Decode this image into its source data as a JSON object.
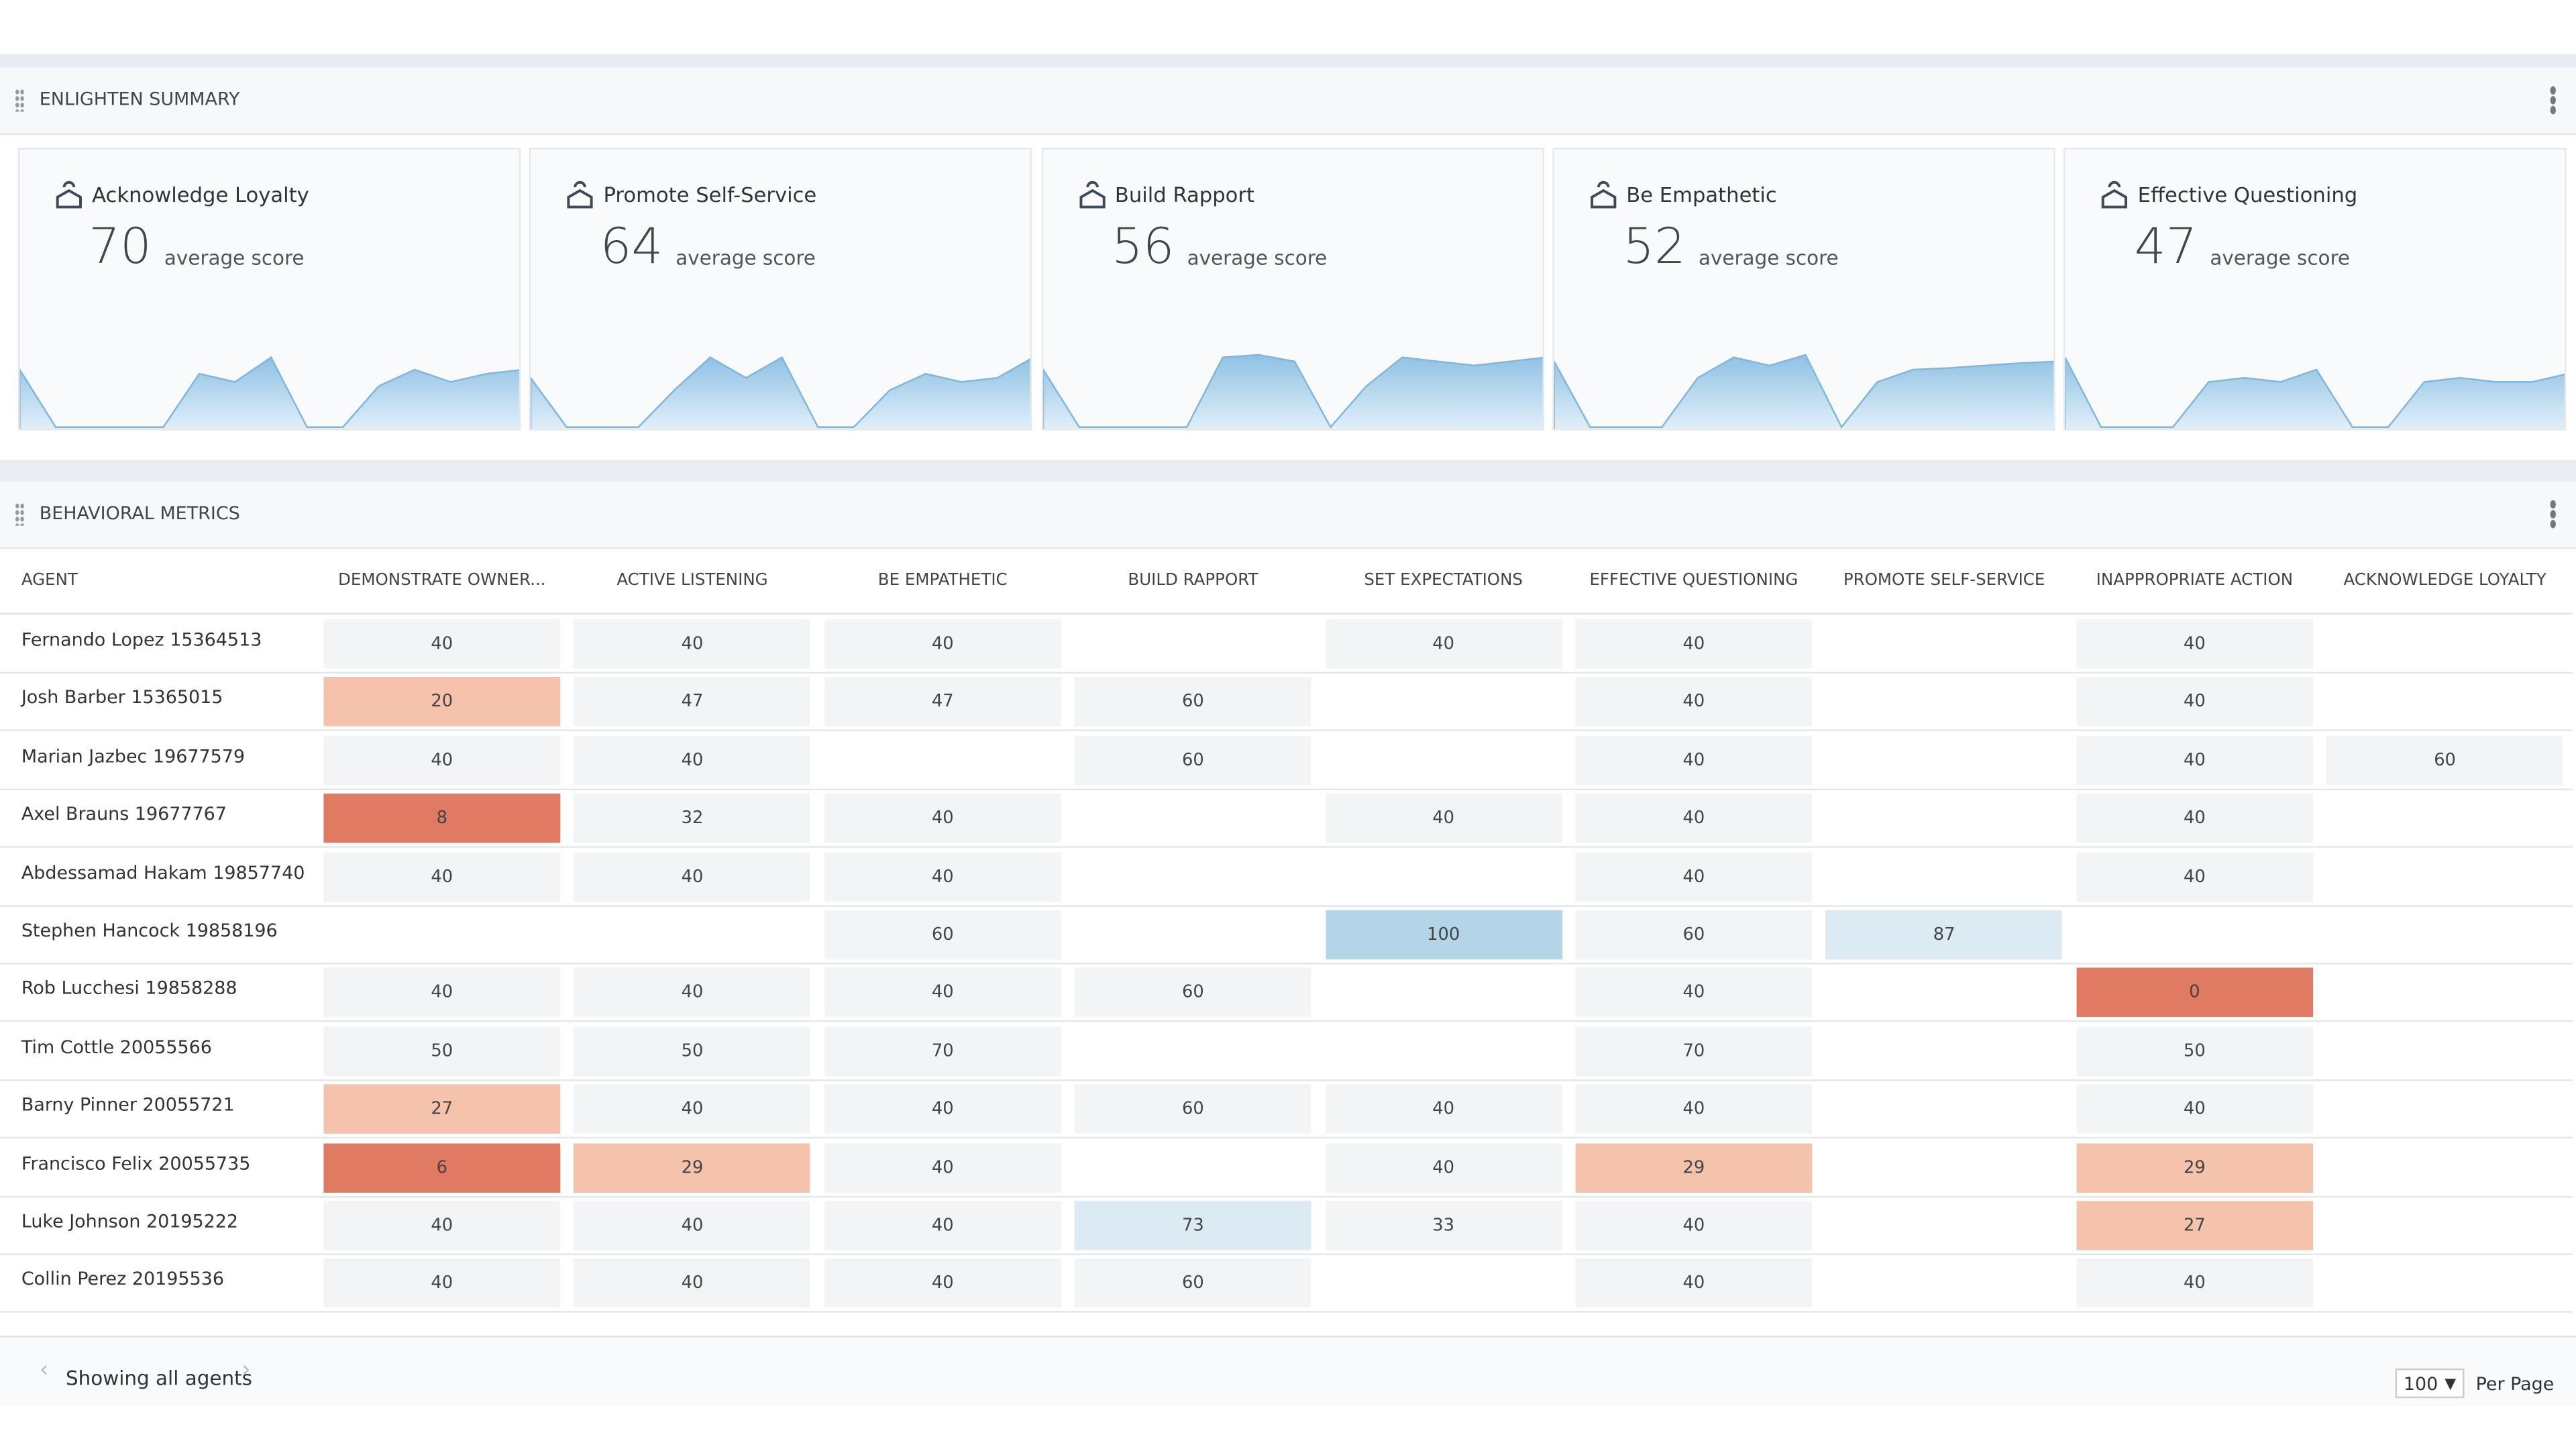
{
  "summary": {
    "title": "ENLIGHTEN SUMMARY",
    "cards": [
      {
        "title": "Acknowledge Loyalty",
        "score": 70,
        "score_label": "average score",
        "trend": [
          70,
          0,
          0,
          0,
          0,
          65,
          55,
          85,
          0,
          0,
          50,
          70,
          55,
          65,
          70
        ]
      },
      {
        "title": "Promote Self-Service",
        "score": 64,
        "score_label": "average score",
        "trend": [
          60,
          0,
          0,
          0,
          45,
          85,
          60,
          85,
          0,
          0,
          45,
          65,
          55,
          60,
          85
        ]
      },
      {
        "title": "Build Rapport",
        "score": 56,
        "score_label": "average score",
        "trend": [
          70,
          0,
          0,
          0,
          0,
          85,
          88,
          80,
          0,
          50,
          85,
          80,
          75,
          80,
          85
        ]
      },
      {
        "title": "Be Empathetic",
        "score": 52,
        "score_label": "average score",
        "trend": [
          80,
          0,
          0,
          0,
          60,
          85,
          75,
          88,
          0,
          55,
          70,
          72,
          75,
          78,
          80
        ]
      },
      {
        "title": "Effective Questioning",
        "score": 47,
        "score_label": "average score",
        "trend": [
          85,
          0,
          0,
          0,
          55,
          60,
          55,
          70,
          0,
          0,
          55,
          60,
          55,
          55,
          65
        ]
      }
    ]
  },
  "metrics": {
    "title": "BEHAVIORAL METRICS",
    "columns": [
      "AGENT",
      "DEMONSTRATE OWNER...",
      "ACTIVE LISTENING",
      "BE EMPATHETIC",
      "BUILD RAPPORT",
      "SET EXPECTATIONS",
      "EFFECTIVE QUESTIONING",
      "PROMOTE SELF-SERVICE",
      "INAPPROPRIATE ACTION",
      "ACKNOWLEDGE LOYALTY"
    ],
    "rows": [
      {
        "agent": "Fernando Lopez 15364513",
        "values": [
          40,
          40,
          40,
          null,
          40,
          40,
          null,
          40,
          null
        ]
      },
      {
        "agent": "Josh Barber 15365015",
        "values": [
          20,
          47,
          47,
          60,
          null,
          40,
          null,
          40,
          null
        ]
      },
      {
        "agent": "Marian Jazbec 19677579",
        "values": [
          40,
          40,
          null,
          60,
          null,
          40,
          null,
          40,
          60
        ]
      },
      {
        "agent": "Axel Brauns 19677767",
        "values": [
          8,
          32,
          40,
          null,
          40,
          40,
          null,
          40,
          null
        ]
      },
      {
        "agent": "Abdessamad Hakam 19857740",
        "values": [
          40,
          40,
          40,
          null,
          null,
          40,
          null,
          40,
          null
        ]
      },
      {
        "agent": "Stephen Hancock 19858196",
        "values": [
          null,
          null,
          60,
          null,
          100,
          60,
          87,
          null,
          null
        ]
      },
      {
        "agent": "Rob Lucchesi 19858288",
        "values": [
          40,
          40,
          40,
          60,
          null,
          40,
          null,
          0,
          null
        ]
      },
      {
        "agent": "Tim Cottle 20055566",
        "values": [
          50,
          50,
          70,
          null,
          null,
          70,
          null,
          50,
          null
        ]
      },
      {
        "agent": "Barny Pinner 20055721",
        "values": [
          27,
          40,
          40,
          60,
          40,
          40,
          null,
          40,
          null
        ]
      },
      {
        "agent": "Francisco Felix 20055735",
        "values": [
          6,
          29,
          40,
          null,
          40,
          29,
          null,
          29,
          null
        ]
      },
      {
        "agent": "Luke Johnson 20195222",
        "values": [
          40,
          40,
          40,
          73,
          33,
          40,
          null,
          27,
          null
        ]
      },
      {
        "agent": "Collin Perez 20195536",
        "values": [
          40,
          40,
          40,
          60,
          null,
          40,
          null,
          40,
          null
        ]
      }
    ]
  },
  "footer": {
    "status": "Showing all agents",
    "page_size": "100",
    "page_size_label": "Per Page"
  }
}
